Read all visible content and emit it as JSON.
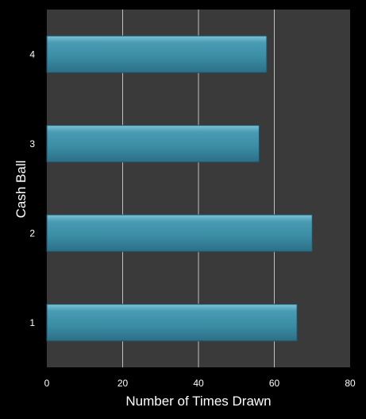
{
  "chart_data": {
    "type": "bar",
    "orientation": "horizontal",
    "categories": [
      "1",
      "2",
      "3",
      "4"
    ],
    "values": [
      66,
      70,
      56,
      58
    ],
    "xlabel": "Number of Times Drawn",
    "ylabel": "Cash Ball",
    "xlim": [
      0,
      80
    ],
    "xticks": [
      "0",
      "20",
      "40",
      "60",
      "80"
    ],
    "grid": true,
    "colors": {
      "background": "#000000",
      "plot_area": "#3a3a3a",
      "bar": "#3c8fa8",
      "grid": "#c0c0c0"
    }
  }
}
